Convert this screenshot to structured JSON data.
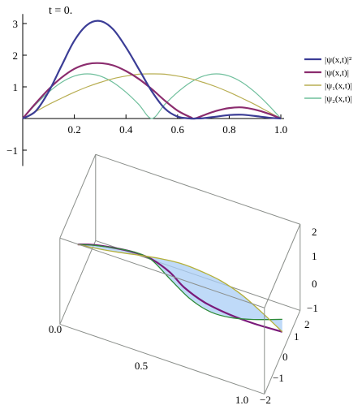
{
  "chart_data": [
    {
      "type": "line",
      "time_label": "t = 0.",
      "xlabel": "",
      "ylabel": "",
      "xlim": [
        0,
        1
      ],
      "ylim": [
        -1.5,
        3.3
      ],
      "xticks": [
        0.2,
        0.4,
        0.6,
        0.8,
        1.0
      ],
      "yticks": [
        -1,
        1,
        2,
        3
      ],
      "xtick_labels": [
        "0.2",
        "0.4",
        "0.6",
        "0.8",
        "1.0"
      ],
      "ytick_labels": [
        "−1",
        "1",
        "2",
        "3"
      ],
      "legend_position": "right",
      "series": [
        {
          "name": "|ψ(x,t)|²",
          "color": "#3b3d96",
          "x": [
            0,
            0.05,
            0.1,
            0.15,
            0.2,
            0.25,
            0.3,
            0.35,
            0.4,
            0.45,
            0.5,
            0.55,
            0.6,
            0.65,
            0.667,
            0.7,
            0.75,
            0.8,
            0.85,
            0.9,
            0.95,
            1.0
          ],
          "values": [
            0,
            0.23,
            0.84,
            1.66,
            2.46,
            2.96,
            3.08,
            2.82,
            2.25,
            1.56,
            0.86,
            0.32,
            0.06,
            0.0,
            0,
            0.01,
            0.06,
            0.11,
            0.12,
            0.08,
            0.03,
            0
          ]
        },
        {
          "name": "|ψ(x,t)|",
          "color": "#8b2c6e",
          "x": [
            0,
            0.05,
            0.1,
            0.15,
            0.2,
            0.25,
            0.3,
            0.35,
            0.4,
            0.45,
            0.5,
            0.55,
            0.6,
            0.65,
            0.667,
            0.7,
            0.75,
            0.8,
            0.85,
            0.9,
            0.95,
            1.0
          ],
          "values": [
            0,
            0.48,
            0.92,
            1.29,
            1.57,
            1.72,
            1.75,
            1.68,
            1.5,
            1.25,
            0.93,
            0.57,
            0.25,
            0.04,
            0,
            0.1,
            0.24,
            0.33,
            0.35,
            0.28,
            0.16,
            0
          ]
        },
        {
          "name": "|ψ₁(x,t)|",
          "color": "#b8ae52",
          "x": [
            0,
            0.05,
            0.1,
            0.15,
            0.2,
            0.25,
            0.3,
            0.35,
            0.4,
            0.45,
            0.5,
            0.55,
            0.6,
            0.65,
            0.7,
            0.75,
            0.8,
            0.85,
            0.9,
            0.95,
            1.0
          ],
          "values": [
            0,
            0.22,
            0.44,
            0.64,
            0.83,
            1.0,
            1.14,
            1.26,
            1.34,
            1.4,
            1.41,
            1.4,
            1.34,
            1.26,
            1.14,
            1.0,
            0.83,
            0.64,
            0.44,
            0.22,
            0
          ]
        },
        {
          "name": "|ψ₂(x,t)|",
          "color": "#6fbf9c",
          "x": [
            0,
            0.05,
            0.1,
            0.15,
            0.2,
            0.25,
            0.3,
            0.35,
            0.4,
            0.45,
            0.5,
            0.55,
            0.6,
            0.65,
            0.7,
            0.75,
            0.8,
            0.85,
            0.9,
            0.95,
            1.0
          ],
          "values": [
            0,
            0.44,
            0.83,
            1.14,
            1.34,
            1.41,
            1.34,
            1.14,
            0.83,
            0.44,
            0,
            0.44,
            0.83,
            1.14,
            1.34,
            1.41,
            1.34,
            1.14,
            0.83,
            0.44,
            0
          ]
        }
      ]
    },
    {
      "type": "surface",
      "x_ticks": [
        "0.0",
        "0.5",
        "1.0"
      ],
      "vertical_ticks": [
        "−1",
        "0",
        "1",
        "2"
      ],
      "depth_ticks": [
        "−2",
        "−1",
        "0",
        "1",
        "2"
      ],
      "surface_color": "#a9cdf5",
      "edge_color": "#8b8f8b",
      "curves": [
        {
          "color": "#7a1a7a",
          "points": [
            [
              0,
              0
            ],
            [
              0.08,
              0.35
            ],
            [
              0.18,
              0.62
            ],
            [
              0.28,
              0.78
            ],
            [
              0.36,
              0.72
            ],
            [
              0.45,
              0.25
            ],
            [
              0.52,
              -0.45
            ],
            [
              0.62,
              -1.0
            ],
            [
              0.74,
              -1.25
            ],
            [
              0.86,
              -1.3
            ],
            [
              1.0,
              -1.2
            ]
          ]
        },
        {
          "color": "#2e8b3a",
          "points": [
            [
              0,
              0
            ],
            [
              0.08,
              0.25
            ],
            [
              0.18,
              0.45
            ],
            [
              0.28,
              0.55
            ],
            [
              0.36,
              0.35
            ],
            [
              0.45,
              -0.6
            ],
            [
              0.55,
              -1.6
            ],
            [
              0.65,
              -2.1
            ],
            [
              0.75,
              -2.1
            ],
            [
              0.86,
              -1.8
            ],
            [
              1.0,
              -1.25
            ]
          ]
        },
        {
          "color": "#b5b03a",
          "points": [
            [
              0,
              0
            ],
            [
              0.1,
              0.18
            ],
            [
              0.2,
              0.42
            ],
            [
              0.3,
              0.7
            ],
            [
              0.4,
              0.95
            ],
            [
              0.5,
              1.1
            ],
            [
              0.6,
              1.05
            ],
            [
              0.7,
              0.85
            ],
            [
              0.8,
              0.4
            ],
            [
              0.9,
              -0.35
            ],
            [
              1.0,
              -1.2
            ]
          ]
        }
      ]
    }
  ]
}
